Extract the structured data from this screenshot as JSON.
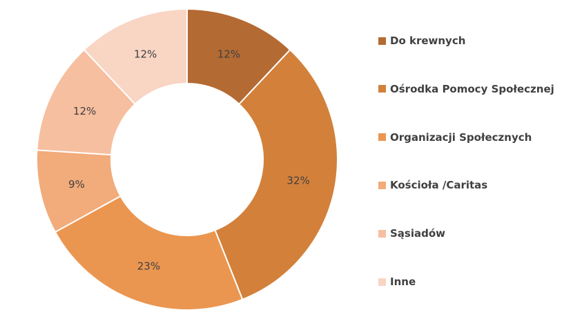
{
  "chart_data": {
    "type": "pie",
    "variant": "donut",
    "title": "",
    "categories": [
      "Do krewnych",
      "Ośrodka Pomocy Społecznej",
      "Organizacji Społecznych",
      "Kościoła /Caritas",
      "Sąsiadów",
      "Inne"
    ],
    "values": [
      12,
      32,
      23,
      9,
      12,
      12
    ],
    "labels": [
      "12%",
      "32%",
      "23%",
      "9%",
      "12%",
      "12%"
    ],
    "colors": [
      "#B46A33",
      "#D3803A",
      "#EB9650",
      "#F2AB7A",
      "#F6BFA0",
      "#F9D5C4"
    ],
    "legend_position": "right",
    "label_color": "#404040"
  }
}
